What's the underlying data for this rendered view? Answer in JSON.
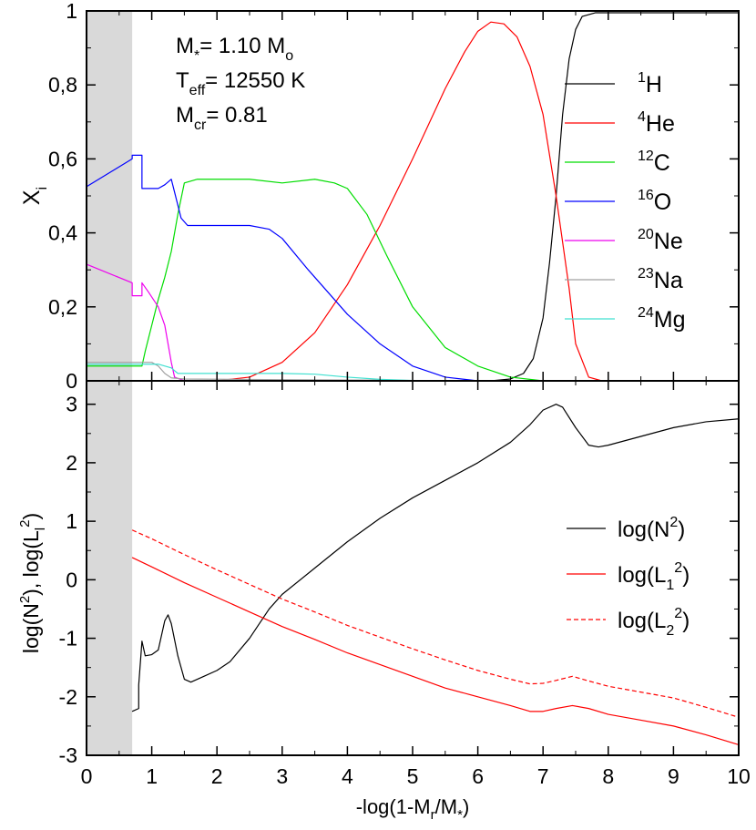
{
  "chart_data": [
    {
      "type": "line",
      "panel": "top",
      "ylabel": "X",
      "ylabel_sub": "i",
      "xlim": [
        0,
        10
      ],
      "ylim": [
        0,
        1
      ],
      "y_ticks": [
        0,
        0.2,
        0.4,
        0.6,
        0.8,
        1
      ],
      "y_tick_labels": [
        "0",
        "0,2",
        "0,4",
        "0,6",
        "0,8",
        "1"
      ],
      "shaded_region": {
        "x_from": 0,
        "x_to": 0.7,
        "color": "#d9d9d9"
      },
      "annotation_lines": [
        {
          "main": "M",
          "sub": "*",
          "rest": "= 1.10 M",
          "tail_sub": "o"
        },
        {
          "main": "T",
          "sub": "eff",
          "rest": "= 12550 K",
          "tail_sub": ""
        },
        {
          "main": "M",
          "sub": "cr",
          "rest": "= 0.81",
          "tail_sub": ""
        }
      ],
      "legend_position": "right",
      "series": [
        {
          "sup": "1",
          "label": "H",
          "color": "#000000",
          "dash": "",
          "points": [
            [
              0,
              0
            ],
            [
              6.2,
              0
            ],
            [
              6.5,
              0.005
            ],
            [
              6.7,
              0.02
            ],
            [
              6.85,
              0.06
            ],
            [
              7.0,
              0.17
            ],
            [
              7.1,
              0.32
            ],
            [
              7.2,
              0.5
            ],
            [
              7.3,
              0.72
            ],
            [
              7.4,
              0.87
            ],
            [
              7.5,
              0.95
            ],
            [
              7.6,
              0.985
            ],
            [
              7.8,
              0.995
            ],
            [
              10,
              0.995
            ]
          ]
        },
        {
          "sup": "4",
          "label": "He",
          "color": "#ff0000",
          "dash": "",
          "points": [
            [
              0,
              0
            ],
            [
              2.0,
              0
            ],
            [
              2.5,
              0.01
            ],
            [
              3,
              0.05
            ],
            [
              3.5,
              0.13
            ],
            [
              4,
              0.26
            ],
            [
              4.5,
              0.42
            ],
            [
              5,
              0.6
            ],
            [
              5.5,
              0.79
            ],
            [
              5.8,
              0.89
            ],
            [
              6,
              0.945
            ],
            [
              6.2,
              0.97
            ],
            [
              6.4,
              0.965
            ],
            [
              6.6,
              0.93
            ],
            [
              6.8,
              0.85
            ],
            [
              7.0,
              0.72
            ],
            [
              7.2,
              0.5
            ],
            [
              7.4,
              0.25
            ],
            [
              7.5,
              0.1
            ],
            [
              7.7,
              0.01
            ],
            [
              7.9,
              0
            ],
            [
              10,
              0
            ]
          ]
        },
        {
          "sup": "12",
          "label": "C",
          "color": "#00dd00",
          "dash": "",
          "points": [
            [
              0,
              0.04
            ],
            [
              0.85,
              0.04
            ],
            [
              0.9,
              0.08
            ],
            [
              1.0,
              0.15
            ],
            [
              1.1,
              0.22
            ],
            [
              1.2,
              0.28
            ],
            [
              1.3,
              0.35
            ],
            [
              1.4,
              0.45
            ],
            [
              1.5,
              0.535
            ],
            [
              1.7,
              0.545
            ],
            [
              2.5,
              0.545
            ],
            [
              3.0,
              0.535
            ],
            [
              3.5,
              0.545
            ],
            [
              3.8,
              0.535
            ],
            [
              4.0,
              0.52
            ],
            [
              4.3,
              0.45
            ],
            [
              4.6,
              0.34
            ],
            [
              5.0,
              0.2
            ],
            [
              5.5,
              0.09
            ],
            [
              6.0,
              0.04
            ],
            [
              6.5,
              0.01
            ],
            [
              7.0,
              0
            ],
            [
              10,
              0
            ]
          ]
        },
        {
          "sup": "16",
          "label": "O",
          "color": "#0000ff",
          "dash": "",
          "points": [
            [
              0,
              0.525
            ],
            [
              0.7,
              0.6
            ],
            [
              0.7,
              0.61
            ],
            [
              0.85,
              0.61
            ],
            [
              0.85,
              0.52
            ],
            [
              1.1,
              0.52
            ],
            [
              1.2,
              0.53
            ],
            [
              1.3,
              0.545
            ],
            [
              1.35,
              0.51
            ],
            [
              1.45,
              0.44
            ],
            [
              1.55,
              0.42
            ],
            [
              2.5,
              0.42
            ],
            [
              2.8,
              0.41
            ],
            [
              3.0,
              0.385
            ],
            [
              3.4,
              0.3
            ],
            [
              4.0,
              0.18
            ],
            [
              4.5,
              0.1
            ],
            [
              5.0,
              0.04
            ],
            [
              5.5,
              0.01
            ],
            [
              6.0,
              0
            ],
            [
              10,
              0
            ]
          ]
        },
        {
          "sup": "20",
          "label": "Ne",
          "color": "#ee00ee",
          "dash": "",
          "points": [
            [
              0,
              0.315
            ],
            [
              0.7,
              0.265
            ],
            [
              0.7,
              0.23
            ],
            [
              0.85,
              0.23
            ],
            [
              0.85,
              0.265
            ],
            [
              0.95,
              0.24
            ],
            [
              1.1,
              0.2
            ],
            [
              1.2,
              0.15
            ],
            [
              1.3,
              0.05
            ],
            [
              1.35,
              0.01
            ],
            [
              1.5,
              0
            ],
            [
              10,
              0
            ]
          ]
        },
        {
          "sup": "23",
          "label": "Na",
          "color": "#a0a0a0",
          "dash": "",
          "points": [
            [
              0,
              0.05
            ],
            [
              1.0,
              0.05
            ],
            [
              1.1,
              0.04
            ],
            [
              1.2,
              0.02
            ],
            [
              1.3,
              0.008
            ],
            [
              1.5,
              0.005
            ],
            [
              3,
              0.003
            ],
            [
              4.5,
              0.002
            ],
            [
              5.5,
              0
            ],
            [
              10,
              0
            ]
          ]
        },
        {
          "sup": "24",
          "label": "Mg",
          "color": "#40e0d0",
          "dash": "",
          "points": [
            [
              0,
              0.045
            ],
            [
              1.1,
              0.045
            ],
            [
              1.3,
              0.035
            ],
            [
              1.4,
              0.02
            ],
            [
              1.5,
              0.02
            ],
            [
              3,
              0.02
            ],
            [
              3.5,
              0.018
            ],
            [
              4,
              0.01
            ],
            [
              4.5,
              0.004
            ],
            [
              5.0,
              0.001
            ],
            [
              5.5,
              0
            ],
            [
              10,
              0
            ]
          ]
        }
      ]
    },
    {
      "type": "line",
      "panel": "bottom",
      "xlabel": "-log(1-M",
      "xlabel_sub": "r",
      "xlabel_tail": "/M",
      "xlabel_tail_sub": "*",
      "xlabel_end": ")",
      "ylabel_parts": [
        {
          "text": "log(N"
        },
        {
          "sup": "2"
        },
        {
          "text": "), log(L"
        },
        {
          "sub": "l"
        },
        {
          "sup": "2"
        },
        {
          "text": ")"
        }
      ],
      "xlim": [
        0,
        10
      ],
      "ylim": [
        -3,
        3.4
      ],
      "x_ticks": [
        0,
        1,
        2,
        3,
        4,
        5,
        6,
        7,
        8,
        9,
        10
      ],
      "x_tick_labels": [
        "0",
        "1",
        "2",
        "3",
        "4",
        "5",
        "6",
        "7",
        "8",
        "9",
        "10"
      ],
      "y_ticks": [
        -3,
        -2,
        -1,
        0,
        1,
        2,
        3
      ],
      "y_tick_labels": [
        "-3",
        "-2",
        "-1",
        "0",
        "1",
        "2",
        "3"
      ],
      "shaded_region": {
        "x_from": 0,
        "x_to": 0.7,
        "color": "#d9d9d9"
      },
      "legend_position": "right",
      "series": [
        {
          "label_pre": "log(N",
          "label_sub": "",
          "label_sup": "2",
          "label_post": ")",
          "color": "#000000",
          "dash": "",
          "points": [
            [
              0.7,
              -2.25
            ],
            [
              0.8,
              -2.2
            ],
            [
              0.8,
              -1.8
            ],
            [
              0.85,
              -1.05
            ],
            [
              0.9,
              -1.3
            ],
            [
              1.0,
              -1.28
            ],
            [
              1.1,
              -1.2
            ],
            [
              1.2,
              -0.7
            ],
            [
              1.25,
              -0.6
            ],
            [
              1.3,
              -0.75
            ],
            [
              1.4,
              -1.3
            ],
            [
              1.5,
              -1.7
            ],
            [
              1.6,
              -1.75
            ],
            [
              1.8,
              -1.65
            ],
            [
              2.0,
              -1.55
            ],
            [
              2.2,
              -1.4
            ],
            [
              2.5,
              -1.0
            ],
            [
              2.8,
              -0.5
            ],
            [
              3.0,
              -0.25
            ],
            [
              3.5,
              0.2
            ],
            [
              4.0,
              0.65
            ],
            [
              4.5,
              1.05
            ],
            [
              5.0,
              1.4
            ],
            [
              5.5,
              1.7
            ],
            [
              6.0,
              2.0
            ],
            [
              6.5,
              2.35
            ],
            [
              6.8,
              2.65
            ],
            [
              7.0,
              2.9
            ],
            [
              7.2,
              3.0
            ],
            [
              7.3,
              2.95
            ],
            [
              7.5,
              2.6
            ],
            [
              7.7,
              2.3
            ],
            [
              7.85,
              2.27
            ],
            [
              8.0,
              2.3
            ],
            [
              8.5,
              2.45
            ],
            [
              9.0,
              2.6
            ],
            [
              9.5,
              2.7
            ],
            [
              10,
              2.75
            ]
          ]
        },
        {
          "label_pre": "log(L",
          "label_sub": "1",
          "label_sup": "2",
          "label_post": ")",
          "color": "#ff0000",
          "dash": "",
          "points": [
            [
              0.7,
              0.38
            ],
            [
              1.0,
              0.22
            ],
            [
              1.5,
              -0.05
            ],
            [
              2.0,
              -0.3
            ],
            [
              2.5,
              -0.55
            ],
            [
              3.0,
              -0.8
            ],
            [
              3.5,
              -1.02
            ],
            [
              4.0,
              -1.25
            ],
            [
              4.5,
              -1.45
            ],
            [
              5.0,
              -1.65
            ],
            [
              5.5,
              -1.85
            ],
            [
              6.0,
              -2.0
            ],
            [
              6.5,
              -2.15
            ],
            [
              6.8,
              -2.25
            ],
            [
              7.0,
              -2.25
            ],
            [
              7.2,
              -2.2
            ],
            [
              7.45,
              -2.15
            ],
            [
              7.7,
              -2.2
            ],
            [
              8.0,
              -2.3
            ],
            [
              8.5,
              -2.4
            ],
            [
              9.0,
              -2.5
            ],
            [
              9.5,
              -2.65
            ],
            [
              10,
              -2.82
            ]
          ]
        },
        {
          "label_pre": "log(L",
          "label_sub": "2",
          "label_sup": "2",
          "label_post": ")",
          "color": "#ff0000",
          "dash": "5,3",
          "points": [
            [
              0.7,
              0.85
            ],
            [
              1.0,
              0.7
            ],
            [
              1.5,
              0.43
            ],
            [
              2.0,
              0.17
            ],
            [
              2.5,
              -0.08
            ],
            [
              3.0,
              -0.33
            ],
            [
              3.5,
              -0.55
            ],
            [
              4.0,
              -0.78
            ],
            [
              4.5,
              -0.98
            ],
            [
              5.0,
              -1.18
            ],
            [
              5.5,
              -1.37
            ],
            [
              6.0,
              -1.55
            ],
            [
              6.5,
              -1.7
            ],
            [
              6.8,
              -1.78
            ],
            [
              7.0,
              -1.77
            ],
            [
              7.2,
              -1.72
            ],
            [
              7.45,
              -1.65
            ],
            [
              7.7,
              -1.73
            ],
            [
              8.0,
              -1.82
            ],
            [
              8.5,
              -1.92
            ],
            [
              9.0,
              -2.02
            ],
            [
              9.5,
              -2.18
            ],
            [
              10,
              -2.35
            ]
          ]
        }
      ]
    }
  ]
}
